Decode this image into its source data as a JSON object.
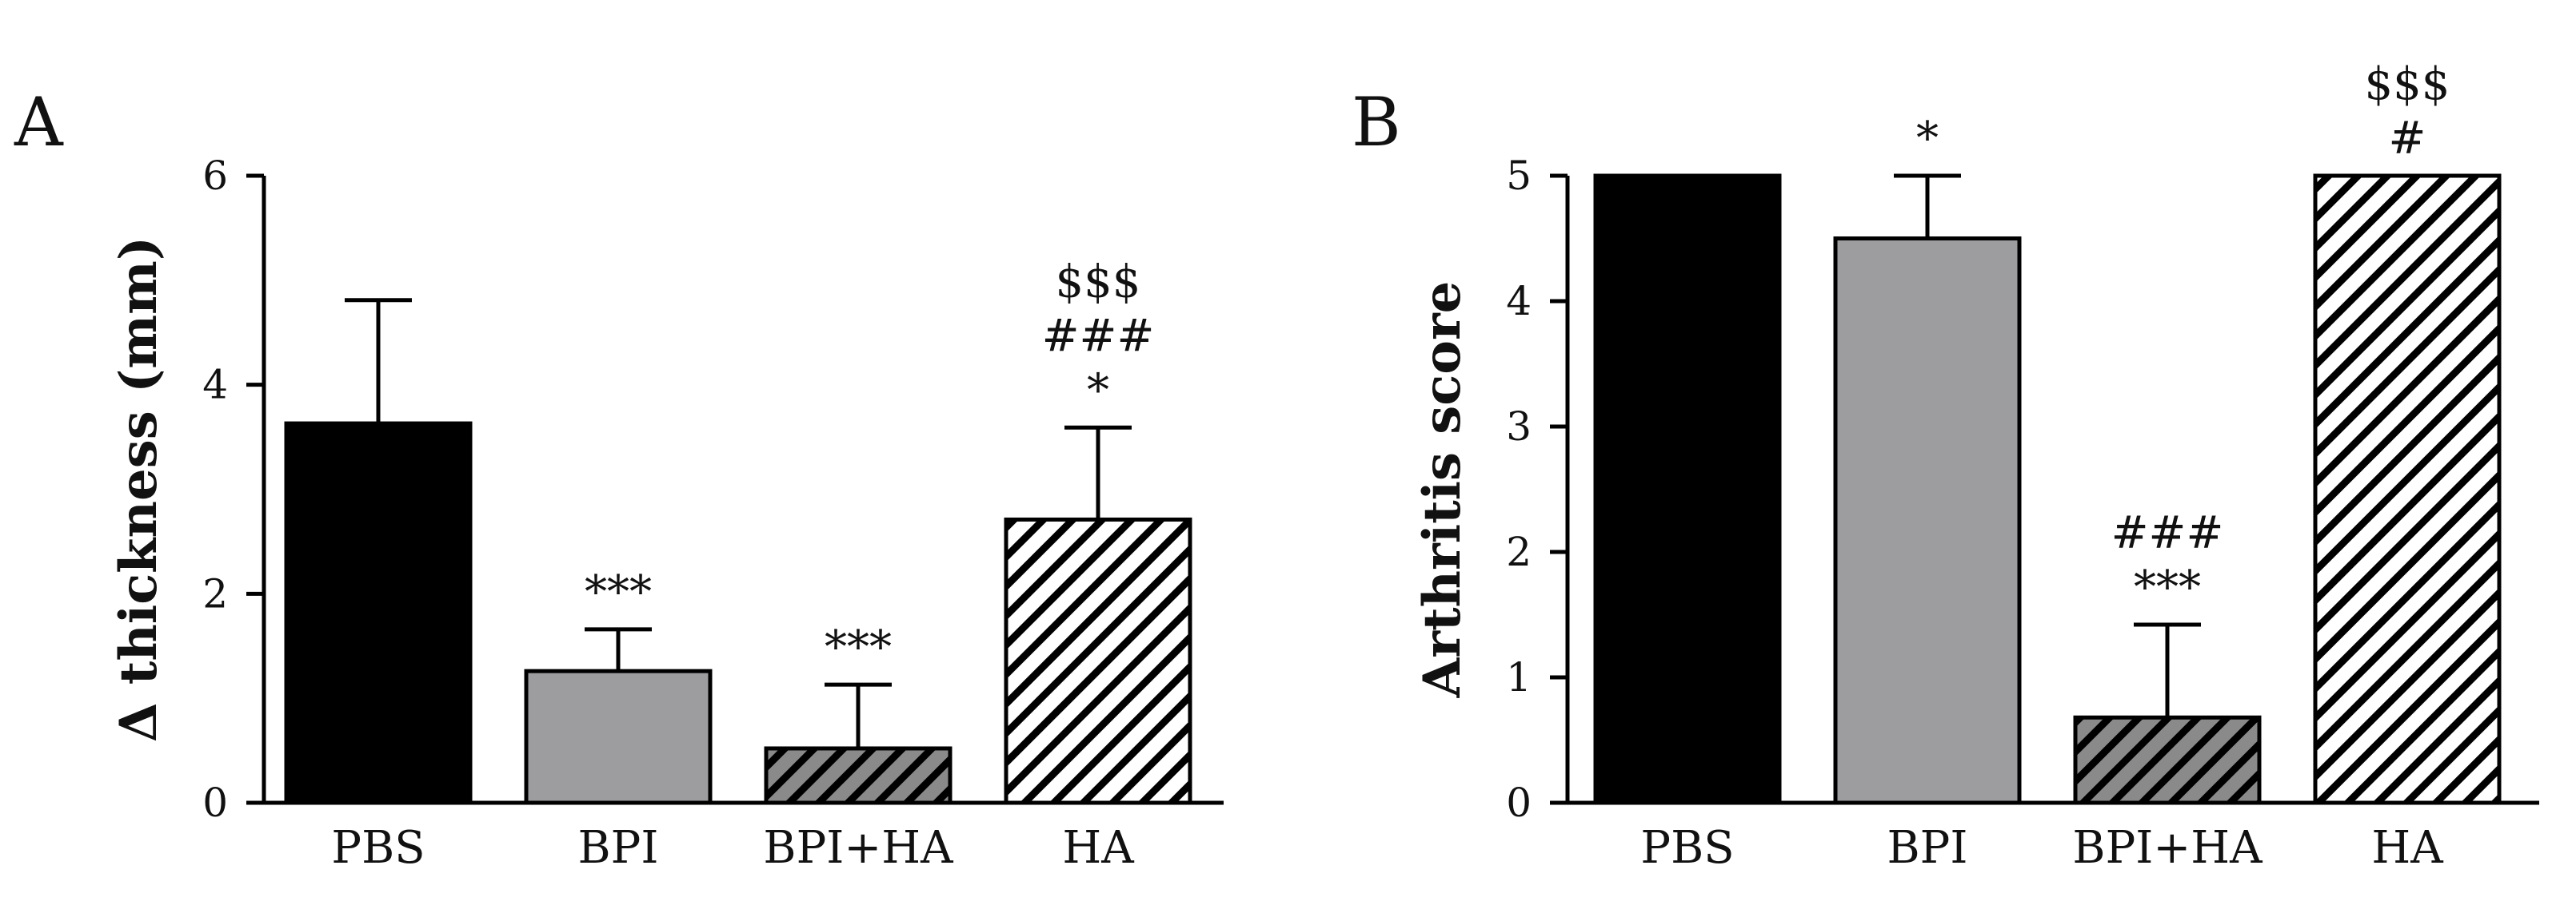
{
  "chart_data": [
    {
      "panel": "A",
      "type": "bar",
      "title": "",
      "xlabel": "",
      "ylabel": "Δ thickness (mm)",
      "ylim": [
        0,
        6
      ],
      "yticks": [
        0,
        2,
        4,
        6
      ],
      "categories": [
        "PBS",
        "BPI",
        "BPI+HA",
        "HA"
      ],
      "values": [
        3.63,
        1.26,
        0.52,
        2.71
      ],
      "errors": [
        1.18,
        0.4,
        0.61,
        0.88
      ],
      "fills": [
        "solid-black",
        "solid-gray",
        "hatch-gray",
        "hatch-white"
      ],
      "annotations": [
        [],
        [
          "***"
        ],
        [
          "***"
        ],
        [
          "$$$",
          "###",
          "*"
        ]
      ]
    },
    {
      "panel": "B",
      "type": "bar",
      "title": "",
      "xlabel": "",
      "ylabel": "Arthritis score",
      "ylim": [
        0,
        5
      ],
      "yticks": [
        0,
        1,
        2,
        3,
        4,
        5
      ],
      "categories": [
        "PBS",
        "BPI",
        "BPI+HA",
        "HA"
      ],
      "values": [
        5.0,
        4.5,
        0.68,
        5.0
      ],
      "errors": [
        0,
        0.5,
        0.74,
        0
      ],
      "fills": [
        "solid-black",
        "solid-gray",
        "hatch-gray",
        "hatch-white"
      ],
      "annotations": [
        [],
        [
          "*"
        ],
        [
          "###",
          "***"
        ],
        [
          "$$$",
          "#"
        ]
      ]
    }
  ],
  "colors": {
    "black_bar": "#000000",
    "gray_bar": "#9d9d9f",
    "hatch_gray_bg": "#8a8a8a",
    "hatch_white_bg": "#ffffff",
    "stroke": "#000000"
  }
}
